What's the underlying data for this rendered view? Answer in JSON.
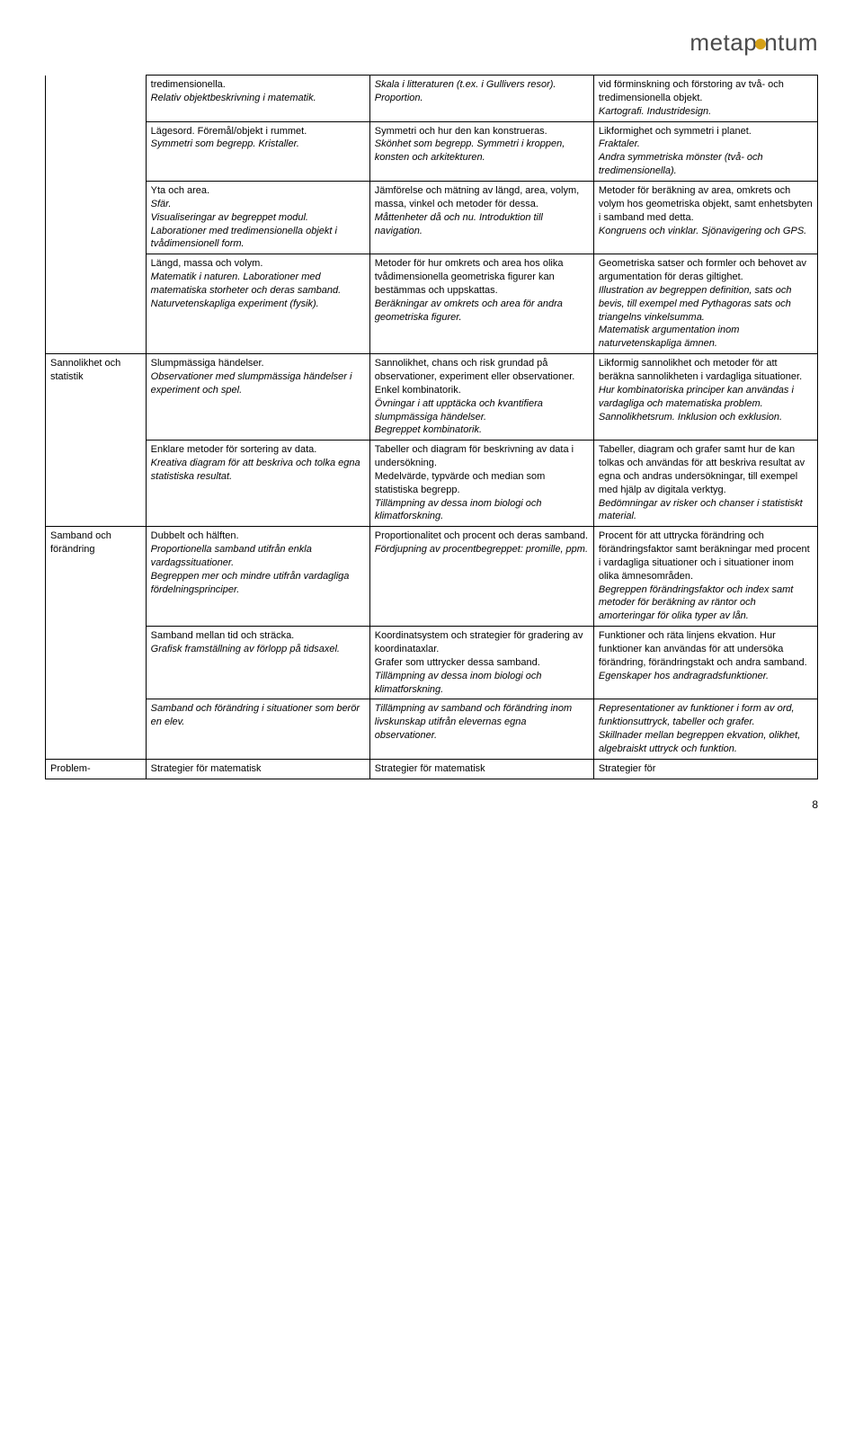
{
  "logo_text_before": "metap",
  "logo_text_after": "ntum",
  "page_number": "8",
  "rows": [
    {
      "label": "",
      "cells": [
        {
          "parts": [
            {
              "t": "tredimensionella.",
              "i": false
            },
            {
              "t": "Relativ objektbeskrivning i matematik.",
              "i": true
            }
          ]
        },
        {
          "parts": [
            {
              "t": "Skala i litteraturen (t.ex. i Gullivers resor). Proportion.",
              "i": true
            }
          ]
        },
        {
          "parts": [
            {
              "t": "vid förminskning och förstoring av två- och tredimensionella objekt.",
              "i": false
            },
            {
              "t": "Kartografi. Industridesign.",
              "i": true
            }
          ]
        }
      ]
    },
    {
      "label": "",
      "cells": [
        {
          "parts": [
            {
              "t": "Lägesord. Föremål/objekt i rummet.",
              "i": false
            },
            {
              "t": "Symmetri som begrepp. Kristaller.",
              "i": true
            }
          ]
        },
        {
          "parts": [
            {
              "t": "Symmetri och hur den kan konstrueras.",
              "i": false
            },
            {
              "t": "Skönhet som begrepp. Symmetri i kroppen, konsten och arkitekturen.",
              "i": true
            }
          ]
        },
        {
          "parts": [
            {
              "t": "Likformighet och symmetri i planet.",
              "i": false
            },
            {
              "t": "Fraktaler.",
              "i": true
            },
            {
              "t": "Andra symmetriska mönster (två- och tredimensionella).",
              "i": true
            }
          ]
        }
      ]
    },
    {
      "label": "",
      "cells": [
        {
          "parts": [
            {
              "t": "Yta och area.",
              "i": false
            },
            {
              "t": "Sfär.",
              "i": true
            },
            {
              "t": "Visualiseringar av begreppet modul.",
              "i": true
            },
            {
              "t": "Laborationer med tredimensionella objekt i tvådimensionell form.",
              "i": true
            }
          ]
        },
        {
          "parts": [
            {
              "t": "Jämförelse och mätning av längd, area, volym, massa, vinkel och metoder för dessa.",
              "i": false
            },
            {
              "t": "Måttenheter då och nu. Introduktion till navigation.",
              "i": true
            }
          ]
        },
        {
          "parts": [
            {
              "t": "Metoder för beräkning av area, omkrets och volym hos geometriska objekt, samt enhetsbyten i samband med detta.",
              "i": false
            },
            {
              "t": "Kongruens och vinklar. Sjönavigering och GPS.",
              "i": true
            }
          ]
        }
      ]
    },
    {
      "label": "",
      "cells": [
        {
          "parts": [
            {
              "t": "Längd, massa och volym.",
              "i": false
            },
            {
              "t": "Matematik i naturen. Laborationer med matematiska storheter och deras samband.",
              "i": true
            },
            {
              "t": "Naturvetenskapliga experiment (fysik).",
              "i": true
            }
          ]
        },
        {
          "parts": [
            {
              "t": "Metoder för hur omkrets och area hos olika tvådimensionella geometriska figurer kan bestämmas och uppskattas.",
              "i": false
            },
            {
              "t": "Beräkningar av omkrets och area för andra geometriska figurer.",
              "i": true
            }
          ]
        },
        {
          "parts": [
            {
              "t": "Geometriska satser och formler och behovet av argumentation för deras giltighet.",
              "i": false
            },
            {
              "t": "Illustration av begreppen definition, sats och bevis, till exempel med Pythagoras sats och triangelns vinkelsumma.",
              "i": true
            },
            {
              "t": "Matematisk argumentation inom naturvetenskapliga ämnen.",
              "i": true
            }
          ]
        }
      ]
    },
    {
      "label": "Sannolikhet och statistik",
      "cells": [
        {
          "parts": [
            {
              "t": "Slumpmässiga händelser.",
              "i": false
            },
            {
              "t": "Observationer med slumpmässiga händelser i experiment och spel.",
              "i": true
            }
          ]
        },
        {
          "parts": [
            {
              "t": "Sannolikhet, chans och risk grundad på observationer, experiment eller observationer. Enkel kombinatorik.",
              "i": false
            },
            {
              "t": "Övningar i att upptäcka och kvantifiera slumpmässiga händelser.",
              "i": true
            },
            {
              "t": "Begreppet kombinatorik.",
              "i": true
            }
          ]
        },
        {
          "parts": [
            {
              "t": "Likformig sannolikhet och metoder för att beräkna sannolikheten i vardagliga situationer.",
              "i": false
            },
            {
              "t": "Hur kombinatoriska principer kan användas i vardagliga och matematiska problem.",
              "i": true
            },
            {
              "t": "Sannolikhetsrum. Inklusion och exklusion.",
              "i": true
            }
          ]
        }
      ]
    },
    {
      "label": "",
      "cells": [
        {
          "parts": [
            {
              "t": "Enklare metoder för sortering av data.",
              "i": false
            },
            {
              "t": "Kreativa diagram för att beskriva och tolka egna statistiska resultat.",
              "i": true
            }
          ]
        },
        {
          "parts": [
            {
              "t": "Tabeller och diagram för beskrivning av data i undersökning.",
              "i": false
            },
            {
              "t": "Medelvärde, typvärde och median som statistiska begrepp.",
              "i": false
            },
            {
              "t": "Tillämpning av dessa inom biologi och klimatforskning.",
              "i": true
            }
          ]
        },
        {
          "parts": [
            {
              "t": "Tabeller, diagram och grafer samt hur de kan tolkas och användas för att beskriva resultat av egna och andras undersökningar, till exempel med hjälp av digitala verktyg. ",
              "i": false
            },
            {
              "t": "Bedömningar av risker och chanser i statistiskt material.",
              "i": true
            }
          ]
        }
      ]
    },
    {
      "label": "Samband och förändring",
      "cells": [
        {
          "parts": [
            {
              "t": "Dubbelt och hälften.",
              "i": false
            },
            {
              "t": "Proportionella samband utifrån enkla vardagssituationer.",
              "i": true
            },
            {
              "t": "Begreppen mer och mindre utifrån vardagliga fördelningsprinciper.",
              "i": true
            }
          ]
        },
        {
          "parts": [
            {
              "t": "Proportionalitet och procent och deras samband.",
              "i": false
            },
            {
              "t": "Fördjupning av procentbegreppet: promille, ppm.",
              "i": true
            }
          ]
        },
        {
          "parts": [
            {
              "t": "Procent för att uttrycka förändring och förändringsfaktor samt beräkningar med procent i vardagliga situationer och i situationer inom olika ämnesområden.",
              "i": false
            },
            {
              "t": "Begreppen förändringsfaktor och index samt metoder för beräkning av räntor och amorteringar för olika typer av lån.",
              "i": true
            }
          ]
        }
      ]
    },
    {
      "label": "",
      "cells": [
        {
          "parts": [
            {
              "t": "Samband mellan tid och sträcka.",
              "i": false
            },
            {
              "t": "Grafisk framställning av förlopp på tidsaxel.",
              "i": true
            }
          ]
        },
        {
          "parts": [
            {
              "t": "Koordinatsystem och strategier för gradering av koordinataxlar.",
              "i": false
            },
            {
              "t": "Grafer som uttrycker dessa samband.",
              "i": false
            },
            {
              "t": "Tillämpning av dessa inom biologi och klimatforskning.",
              "i": true
            }
          ]
        },
        {
          "parts": [
            {
              "t": "Funktioner och räta linjens ekvation. Hur funktioner kan användas för att undersöka förändring, förändringstakt och andra samband.",
              "i": false
            },
            {
              "t": "Egenskaper hos andragradsfunktioner.",
              "i": true
            }
          ]
        }
      ]
    },
    {
      "label": "",
      "cells": [
        {
          "parts": [
            {
              "t": "Samband och förändring i situationer som berör en elev.",
              "i": true
            }
          ]
        },
        {
          "parts": [
            {
              "t": "Tillämpning av samband och förändring inom livskunskap utifrån elevernas egna observationer.",
              "i": true
            }
          ]
        },
        {
          "parts": [
            {
              "t": "Representationer av funktioner i form av ord, funktionsuttryck, tabeller och grafer.",
              "i": true
            },
            {
              "t": "Skillnader mellan begreppen ekvation, olikhet, algebraiskt uttryck och funktion.",
              "i": true
            }
          ]
        }
      ]
    },
    {
      "label": "Problem-",
      "cells": [
        {
          "parts": [
            {
              "t": "Strategier för matematisk",
              "i": false
            }
          ]
        },
        {
          "parts": [
            {
              "t": "Strategier för matematisk",
              "i": false
            }
          ]
        },
        {
          "parts": [
            {
              "t": "Strategier för",
              "i": false
            }
          ]
        }
      ]
    }
  ],
  "row_groups": [
    {
      "start": 0,
      "end": 3
    },
    {
      "start": 4,
      "end": 5
    },
    {
      "start": 6,
      "end": 8
    },
    {
      "start": 9,
      "end": 9
    }
  ]
}
